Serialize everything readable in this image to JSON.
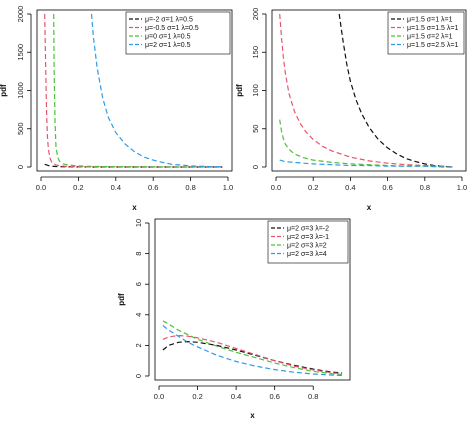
{
  "chart_data": [
    {
      "type": "line",
      "title": "",
      "xlabel": "x",
      "ylabel": "pdf",
      "xlim": [
        0.0,
        1.0
      ],
      "ylim": [
        0,
        2000
      ],
      "x_ticks": [
        "0.0",
        "0.2",
        "0.4",
        "0.6",
        "0.8",
        "1.0"
      ],
      "x_tick_values": [
        0.0,
        0.2,
        0.4,
        0.6,
        0.8,
        1.0
      ],
      "y_ticks": [
        "0",
        "500",
        "1000",
        "1500",
        "2000"
      ],
      "y_tick_values": [
        0,
        500,
        1000,
        1500,
        2000
      ],
      "legend_position": "top-right",
      "series": [
        {
          "name": "μ=-2 σ=1 λ=0.5",
          "color": "#111111",
          "x": [
            0.02,
            0.04,
            0.06,
            0.08,
            0.1,
            0.15,
            0.2,
            0.3,
            0.5,
            0.7,
            0.97
          ],
          "values": [
            35,
            18,
            10,
            6,
            4,
            2,
            1,
            0,
            0,
            0,
            0
          ]
        },
        {
          "name": "μ=-0.5 σ=1 λ=0.5",
          "color": "#e8546b",
          "x": [
            0.02,
            0.025,
            0.03,
            0.035,
            0.04,
            0.05,
            0.06,
            0.08,
            0.1,
            0.15,
            0.2,
            0.3,
            0.5,
            0.7,
            0.97
          ],
          "values": [
            2000,
            1300,
            700,
            380,
            220,
            100,
            55,
            28,
            15,
            7,
            3,
            1,
            0,
            0,
            0
          ]
        },
        {
          "name": "μ=0 σ=1 λ=0.5",
          "color": "#4dc13a",
          "x": [
            0.068,
            0.07,
            0.075,
            0.08,
            0.09,
            0.1,
            0.12,
            0.15,
            0.2,
            0.3,
            0.4,
            0.6,
            0.8,
            0.97
          ],
          "values": [
            2000,
            1300,
            600,
            260,
            120,
            70,
            40,
            25,
            14,
            7,
            4,
            1,
            0,
            0
          ]
        },
        {
          "name": "μ=2 σ=1 λ=0.5",
          "color": "#2f9be5",
          "x": [
            0.27,
            0.28,
            0.3,
            0.33,
            0.36,
            0.4,
            0.45,
            0.5,
            0.55,
            0.6,
            0.65,
            0.7,
            0.8,
            0.9,
            0.97
          ],
          "values": [
            2000,
            1700,
            1300,
            900,
            650,
            450,
            300,
            200,
            130,
            90,
            60,
            35,
            15,
            5,
            2
          ]
        }
      ]
    },
    {
      "type": "line",
      "title": "",
      "xlabel": "x",
      "ylabel": "pdf",
      "xlim": [
        0.0,
        1.0
      ],
      "ylim": [
        0,
        200
      ],
      "x_ticks": [
        "0.0",
        "0.2",
        "0.4",
        "0.6",
        "0.8",
        "1.0"
      ],
      "x_tick_values": [
        0.0,
        0.2,
        0.4,
        0.6,
        0.8,
        1.0
      ],
      "y_ticks": [
        "0",
        "50",
        "100",
        "150",
        "200"
      ],
      "y_tick_values": [
        0,
        50,
        100,
        150,
        200
      ],
      "legend_position": "top-right",
      "series": [
        {
          "name": "μ=1.5 σ=1 λ=1",
          "color": "#111111",
          "x": [
            0.34,
            0.36,
            0.38,
            0.4,
            0.43,
            0.46,
            0.5,
            0.55,
            0.6,
            0.65,
            0.7,
            0.75,
            0.8,
            0.85,
            0.9,
            0.95
          ],
          "values": [
            200,
            165,
            135,
            112,
            88,
            70,
            52,
            36,
            25,
            17,
            11,
            7,
            4,
            2,
            1,
            0
          ]
        },
        {
          "name": "μ=1.5 σ=1.5 λ=1",
          "color": "#e8546b",
          "x": [
            0.02,
            0.03,
            0.04,
            0.05,
            0.07,
            0.1,
            0.13,
            0.16,
            0.2,
            0.25,
            0.3,
            0.4,
            0.5,
            0.6,
            0.7,
            0.8,
            0.9,
            0.95
          ],
          "values": [
            200,
            168,
            143,
            123,
            96,
            72,
            57,
            46,
            36,
            27,
            21,
            13,
            8,
            5,
            3,
            2,
            1,
            0
          ]
        },
        {
          "name": "μ=1.5 σ=2 λ=1",
          "color": "#4dc13a",
          "x": [
            0.02,
            0.03,
            0.04,
            0.05,
            0.07,
            0.1,
            0.15,
            0.2,
            0.3,
            0.4,
            0.5,
            0.6,
            0.7,
            0.8,
            0.9,
            0.95
          ],
          "values": [
            62,
            46,
            37,
            30,
            23,
            17,
            12,
            9,
            6,
            4,
            3,
            2,
            1,
            1,
            0,
            0
          ]
        },
        {
          "name": "μ=1.5 σ=2.5 λ=1",
          "color": "#2f9be5",
          "x": [
            0.02,
            0.05,
            0.1,
            0.15,
            0.2,
            0.3,
            0.4,
            0.5,
            0.6,
            0.7,
            0.8,
            0.9,
            0.95
          ],
          "values": [
            9,
            7,
            6,
            5,
            4,
            3,
            2,
            2,
            1,
            1,
            1,
            0,
            0
          ]
        }
      ]
    },
    {
      "type": "line",
      "title": "",
      "xlabel": "x",
      "ylabel": "pdf",
      "xlim": [
        0.0,
        0.97
      ],
      "ylim": [
        0,
        10
      ],
      "x_ticks": [
        "0.0",
        "0.2",
        "0.4",
        "0.6",
        "0.8"
      ],
      "x_tick_values": [
        0.0,
        0.2,
        0.4,
        0.6,
        0.8
      ],
      "y_ticks": [
        "0",
        "2",
        "4",
        "6",
        "8",
        "10"
      ],
      "y_tick_values": [
        0,
        2,
        4,
        6,
        8,
        10
      ],
      "legend_position": "top-right",
      "series": [
        {
          "name": "μ=2 σ=3 λ=-2",
          "color": "#111111",
          "x": [
            0.02,
            0.05,
            0.1,
            0.15,
            0.2,
            0.3,
            0.4,
            0.5,
            0.6,
            0.7,
            0.8,
            0.9,
            0.95
          ],
          "values": [
            1.7,
            2.0,
            2.2,
            2.25,
            2.2,
            2.0,
            1.7,
            1.35,
            1.0,
            0.7,
            0.45,
            0.25,
            0.2
          ]
        },
        {
          "name": "μ=2 σ=3 λ=-1",
          "color": "#e8546b",
          "x": [
            0.02,
            0.05,
            0.1,
            0.15,
            0.2,
            0.3,
            0.4,
            0.5,
            0.6,
            0.7,
            0.8,
            0.9,
            0.95
          ],
          "values": [
            2.4,
            2.55,
            2.65,
            2.6,
            2.5,
            2.2,
            1.8,
            1.4,
            1.0,
            0.65,
            0.4,
            0.2,
            0.15
          ]
        },
        {
          "name": "μ=2 σ=3 λ=2",
          "color": "#4dc13a",
          "x": [
            0.02,
            0.05,
            0.1,
            0.15,
            0.2,
            0.3,
            0.4,
            0.5,
            0.6,
            0.7,
            0.8,
            0.9,
            0.95
          ],
          "values": [
            3.6,
            3.4,
            3.0,
            2.7,
            2.4,
            1.95,
            1.55,
            1.2,
            0.85,
            0.55,
            0.3,
            0.15,
            0.1
          ]
        },
        {
          "name": "μ=2 σ=3 λ=4",
          "color": "#2f9be5",
          "x": [
            0.02,
            0.05,
            0.1,
            0.15,
            0.2,
            0.3,
            0.4,
            0.5,
            0.6,
            0.7,
            0.8,
            0.9,
            0.95
          ],
          "values": [
            3.3,
            3.0,
            2.6,
            2.2,
            1.9,
            1.35,
            0.95,
            0.65,
            0.42,
            0.25,
            0.13,
            0.06,
            0.03
          ]
        }
      ]
    }
  ]
}
